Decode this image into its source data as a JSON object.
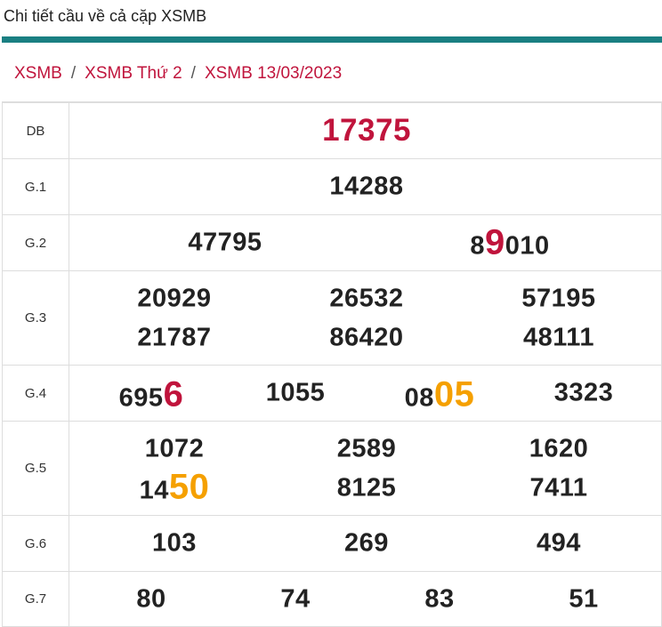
{
  "page": {
    "title": "Chi tiết cầu về cả cặp XSMB"
  },
  "breadcrumb": [
    {
      "label": "XSMB"
    },
    {
      "label": "XSMB Thứ 2"
    },
    {
      "label": "XSMB 13/03/2023"
    }
  ],
  "breadcrumb_separator": "/",
  "rows": {
    "db": {
      "label": "DB",
      "numbers": [
        "17375"
      ]
    },
    "g1": {
      "label": "G.1",
      "numbers": [
        "14288"
      ]
    },
    "g2": {
      "label": "G.2",
      "n1": "47795",
      "n2_pre": "8",
      "n2_hl": "9",
      "n2_post": "010"
    },
    "g3": {
      "label": "G.3",
      "numbers": [
        "20929",
        "26532",
        "57195",
        "21787",
        "86420",
        "48111"
      ]
    },
    "g4": {
      "label": "G.4",
      "n1_pre": "695",
      "n1_hl": "6",
      "n2": "1055",
      "n3_pre": "08",
      "n3_hl": "05",
      "n4": "3323"
    },
    "g5": {
      "label": "G.5",
      "n1": "1072",
      "n2": "2589",
      "n3": "1620",
      "n4_pre": "14",
      "n4_hl": "50",
      "n5": "8125",
      "n6": "7411"
    },
    "g6": {
      "label": "G.6",
      "numbers": [
        "103",
        "269",
        "494"
      ]
    },
    "g7": {
      "label": "G.7",
      "numbers": [
        "80",
        "74",
        "83",
        "51"
      ]
    }
  },
  "colors": {
    "accent_bar": "#1a7f82",
    "link": "#c0143c",
    "highlight_red": "#c0143c",
    "highlight_orange": "#f5a000"
  }
}
